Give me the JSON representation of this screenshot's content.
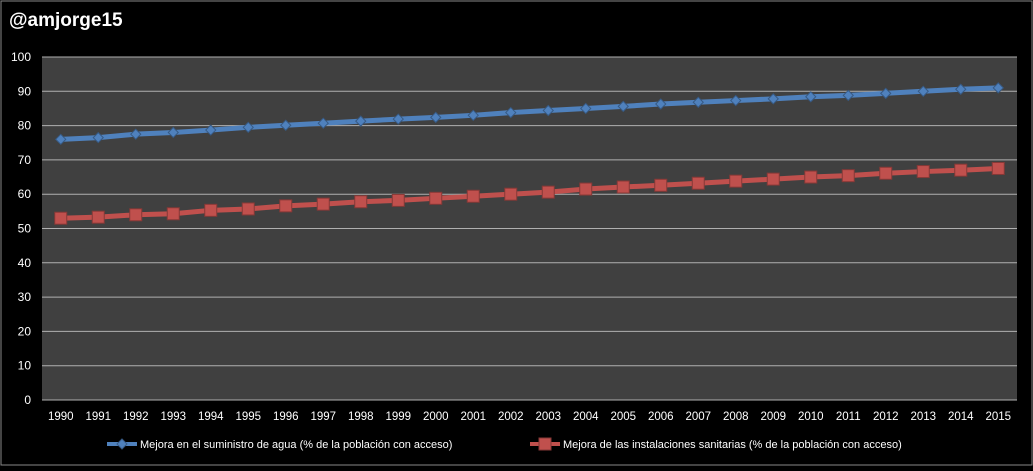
{
  "chart_data": {
    "type": "line",
    "title": "@amjorge15",
    "xlabel": "",
    "ylabel": "",
    "ylim": [
      0,
      100
    ],
    "yticks": [
      0,
      10,
      20,
      30,
      40,
      50,
      60,
      70,
      80,
      90,
      100
    ],
    "grid": true,
    "legend_position": "bottom",
    "x": [
      "1990",
      "1991",
      "1992",
      "1993",
      "1994",
      "1995",
      "1996",
      "1997",
      "1998",
      "1999",
      "2000",
      "2001",
      "2002",
      "2003",
      "2004",
      "2005",
      "2006",
      "2007",
      "2008",
      "2009",
      "2010",
      "2011",
      "2012",
      "2013",
      "2014",
      "2015"
    ],
    "series": [
      {
        "name": "Mejora en el suministro de agua (% de la población con acceso)",
        "color": "#4f81bd",
        "marker": "diamond",
        "values": [
          76,
          76.5,
          77.5,
          78,
          78.7,
          79.5,
          80.1,
          80.7,
          81.3,
          81.9,
          82.4,
          83,
          83.8,
          84.4,
          85,
          85.6,
          86.3,
          86.8,
          87.3,
          87.8,
          88.4,
          88.8,
          89.4,
          90,
          90.6,
          91
        ]
      },
      {
        "name": "Mejora de las instalaciones sanitarias (% de la población con acceso)",
        "color": "#c0504d",
        "marker": "square",
        "values": [
          53,
          53.3,
          54,
          54.3,
          55.3,
          55.7,
          56.6,
          57.1,
          57.8,
          58.2,
          58.8,
          59.4,
          60,
          60.6,
          61.5,
          62.1,
          62.6,
          63.2,
          63.8,
          64.4,
          65,
          65.4,
          66.1,
          66.6,
          67,
          67.5
        ]
      }
    ]
  },
  "colors": {
    "page_background": "#000000",
    "plot_background": "#404040",
    "gridline": "#b0b0b0",
    "text": "#ffffff"
  }
}
